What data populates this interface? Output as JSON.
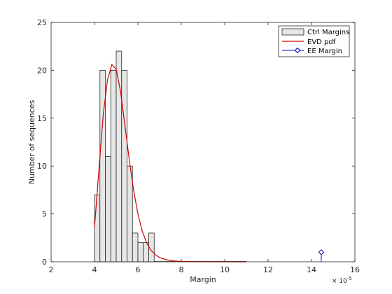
{
  "chart_data": {
    "type": "bar",
    "xlabel": "Margin",
    "ylabel": "Number of sequences",
    "xlim": [
      2,
      16
    ],
    "ylim": [
      0,
      25
    ],
    "x_exponent_label": "× 10",
    "x_exponent_power": "-5",
    "x_ticks": [
      "2",
      "4",
      "6",
      "8",
      "10",
      "12",
      "14",
      "16"
    ],
    "y_ticks": [
      "0",
      "5",
      "10",
      "15",
      "20",
      "25"
    ],
    "legend_position": "top-right",
    "histogram": {
      "name": "Ctrl Margins",
      "bin_width": 0.25,
      "bins": [
        {
          "start": 4.0,
          "count": 7
        },
        {
          "start": 4.25,
          "count": 20
        },
        {
          "start": 4.5,
          "count": 11
        },
        {
          "start": 4.75,
          "count": 20
        },
        {
          "start": 5.0,
          "count": 22
        },
        {
          "start": 5.25,
          "count": 20
        },
        {
          "start": 5.5,
          "count": 10
        },
        {
          "start": 5.75,
          "count": 3
        },
        {
          "start": 6.0,
          "count": 2
        },
        {
          "start": 6.25,
          "count": 2
        },
        {
          "start": 6.5,
          "count": 3
        }
      ],
      "color": "#e6e6e6"
    },
    "pdf": {
      "name": "EVD pdf",
      "color": "#d40000",
      "points": [
        [
          4.0,
          3.6
        ],
        [
          4.2,
          9.5
        ],
        [
          4.4,
          15.3
        ],
        [
          4.6,
          19.0
        ],
        [
          4.8,
          20.6
        ],
        [
          5.0,
          20.1
        ],
        [
          5.2,
          17.8
        ],
        [
          5.4,
          14.3
        ],
        [
          5.6,
          10.7
        ],
        [
          5.8,
          7.5
        ],
        [
          6.0,
          5.0
        ],
        [
          6.2,
          3.2
        ],
        [
          6.4,
          2.0
        ],
        [
          6.6,
          1.2
        ],
        [
          6.8,
          0.75
        ],
        [
          7.0,
          0.45
        ],
        [
          7.3,
          0.22
        ],
        [
          7.6,
          0.1
        ],
        [
          8.0,
          0.04
        ],
        [
          9.0,
          0.01
        ],
        [
          11.0,
          0.0
        ]
      ]
    },
    "marker": {
      "name": "EE Margin",
      "x": 14.45,
      "y": 1,
      "color": "#0000c0"
    }
  }
}
